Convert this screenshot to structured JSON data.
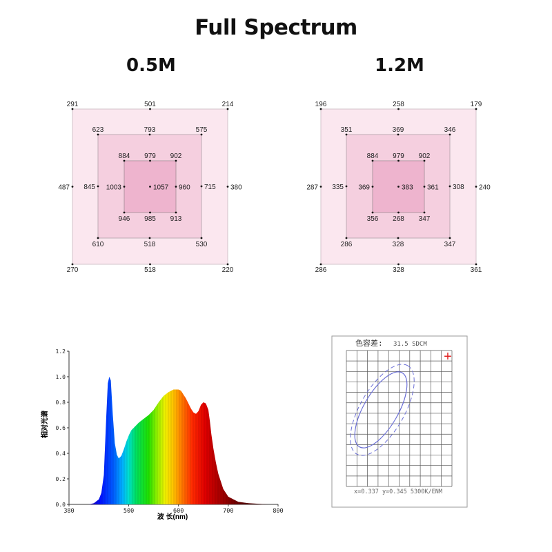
{
  "page_title": "Full Spectrum",
  "grids": [
    {
      "label": "0.5M",
      "outer": {
        "tl": "291",
        "tm": "501",
        "tr": "214",
        "ml": "487",
        "mr": "380",
        "bl": "270",
        "bm": "518",
        "br": "220"
      },
      "middle": {
        "tl": "623",
        "tm": "793",
        "tr": "575",
        "ml": "845",
        "mr": "715",
        "bl": "610",
        "bm": "518",
        "br": "530"
      },
      "inner": {
        "tl": "884",
        "tm": "979",
        "tr": "902",
        "ml": "1003",
        "mr": "960",
        "bl": "946",
        "bm": "985",
        "br": "913"
      },
      "center": "1057"
    },
    {
      "label": "1.2M",
      "outer": {
        "tl": "196",
        "tm": "258",
        "tr": "179",
        "ml": "287",
        "mr": "240",
        "bl": "286",
        "bm": "328",
        "br": "361"
      },
      "middle": {
        "tl": "351",
        "tm": "369",
        "tr": "346",
        "ml": "335",
        "mr": "308",
        "bl": "286",
        "bm": "328",
        "br": "347"
      },
      "inner": {
        "tl": "884",
        "tm": "979",
        "tr": "902",
        "ml": "369",
        "mr": "361",
        "bl": "356",
        "bm": "268",
        "br": "347"
      },
      "center": "383"
    }
  ],
  "chart_data": {
    "type": "area",
    "title": "",
    "xlabel": "波 长(nm)",
    "ylabel": "相对光谱",
    "xlim": [
      380,
      800
    ],
    "ylim": [
      0,
      1.2
    ],
    "xticks": [
      "380",
      "500",
      "600",
      "700",
      "800"
    ],
    "xtick_values": [
      380,
      500,
      600,
      700,
      800
    ],
    "yticks": [
      "0.0",
      "0.2",
      "0.4",
      "0.6",
      "0.8",
      "1.0",
      "1.2"
    ],
    "ytick_values": [
      0,
      0.2,
      0.4,
      0.6,
      0.8,
      1.0,
      1.2
    ],
    "x": [
      420,
      430,
      440,
      445,
      450,
      455,
      458,
      461,
      464,
      468,
      472,
      476,
      480,
      485,
      490,
      495,
      500,
      505,
      510,
      520,
      530,
      540,
      550,
      560,
      570,
      580,
      590,
      595,
      600,
      605,
      610,
      615,
      620,
      625,
      630,
      635,
      640,
      645,
      650,
      655,
      660,
      663,
      666,
      670,
      675,
      680,
      690,
      700,
      720,
      740,
      760,
      780,
      800
    ],
    "values": [
      0.0,
      0.01,
      0.04,
      0.09,
      0.23,
      0.7,
      0.95,
      1.0,
      0.97,
      0.7,
      0.48,
      0.39,
      0.36,
      0.38,
      0.43,
      0.49,
      0.54,
      0.58,
      0.6,
      0.64,
      0.67,
      0.7,
      0.74,
      0.8,
      0.85,
      0.88,
      0.9,
      0.9,
      0.9,
      0.89,
      0.86,
      0.83,
      0.79,
      0.75,
      0.72,
      0.71,
      0.73,
      0.78,
      0.8,
      0.79,
      0.74,
      0.65,
      0.55,
      0.44,
      0.33,
      0.24,
      0.12,
      0.06,
      0.02,
      0.01,
      0.005,
      0.0,
      0.0
    ]
  },
  "chromaticity": {
    "label": "色容差:",
    "value": "31.5 SDCM",
    "footer": "x=0.337  y=0.345  5300K/ENM",
    "marker": "+"
  },
  "colors": {
    "outer_fill": "#fbe7ef",
    "middle_fill": "#f5cfdf",
    "inner_fill": "#eeb4ce",
    "border": "#b0a0a8",
    "ellipse": "#6b6fd6",
    "marker": "#e02020"
  }
}
